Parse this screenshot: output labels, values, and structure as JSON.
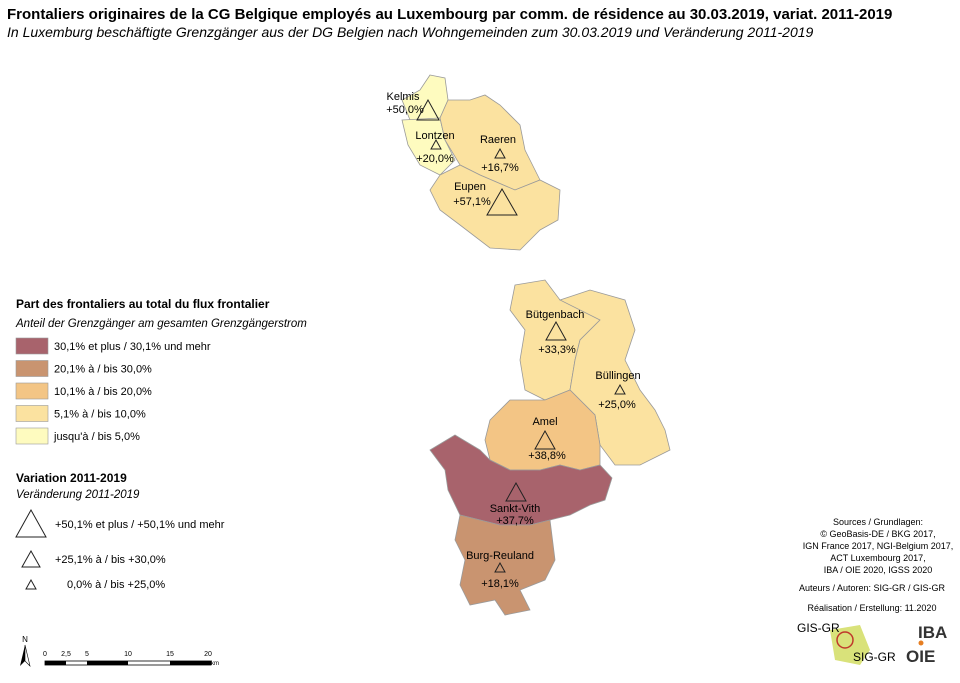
{
  "title": "Frontaliers originaires de la CG Belgique employés au Luxembourg par comm. de résidence au 30.03.2019, variat. 2011-2019",
  "subtitle": "In Luxemburg beschäftigte Grenzgänger aus der DG Belgien nach Wohngemeinden zum 30.03.2019 und Veränderung 2011-2019",
  "municipalities": [
    {
      "name": "Kelmis",
      "label": "+50,0%"
    },
    {
      "name": "Lontzen",
      "label": "+20,0%"
    },
    {
      "name": "Raeren",
      "label": "+16,7%"
    },
    {
      "name": "Eupen",
      "label": "+57,1%"
    },
    {
      "name": "Bütgenbach",
      "label": "+33,3%"
    },
    {
      "name": "Büllingen",
      "label": "+25,0%"
    },
    {
      "name": "Amel",
      "label": "+38,8%"
    },
    {
      "name": "Sankt-Vith",
      "label": "+37,7%"
    },
    {
      "name": "Burg-Reuland",
      "label": "+18,1%"
    }
  ],
  "legend_share": {
    "title": "Part des frontaliers au total du flux frontalier",
    "subtitle": "Anteil der Grenzgänger am gesamten Grenzgängerstrom",
    "classes": [
      {
        "label": "30,1% et plus / 30,1% und mehr",
        "color": "#a8636c"
      },
      {
        "label": "20,1% à / bis 30,0%",
        "color": "#c99470"
      },
      {
        "label": "10,1% à / bis 20,0%",
        "color": "#f3c585"
      },
      {
        "label": "5,1% à / bis 10,0%",
        "color": "#fbe2a0"
      },
      {
        "label": "jusqu'à / bis 5,0%",
        "color": "#fefbbf"
      }
    ]
  },
  "legend_variation": {
    "title": "Variation 2011-2019",
    "subtitle": "Veränderung 2011-2019",
    "classes": [
      "+50,1% et plus / +50,1% und mehr",
      "+25,1% à / bis +30,0%",
      "0,0% à / bis +25,0%"
    ]
  },
  "north": "N",
  "scale_bar": {
    "ticks": [
      "0",
      "2,5",
      "5",
      "10",
      "15",
      "20"
    ],
    "unit": "km"
  },
  "sources": [
    "Sources / Grundlagen:",
    "© GeoBasis-DE / BKG 2017,",
    "IGN France 2017, NGI-Belgium 2017,",
    "ACT Luxembourg 2017,",
    "IBA / OIE 2020, IGSS 2020"
  ],
  "authors": "Auteurs / Autoren: SIG-GR / GIS-GR",
  "realisation": "Réalisation / Erstellung: 11.2020",
  "logos": [
    "GIS-GR",
    "SIG-GR",
    "IBA",
    "OIE"
  ]
}
